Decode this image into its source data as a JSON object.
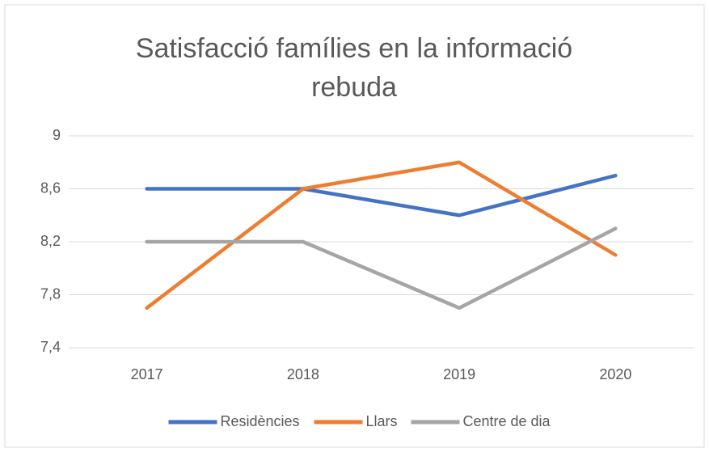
{
  "chart_data": {
    "type": "line",
    "title": "Satisfacció famílies en la informació rebuda",
    "categories": [
      "2017",
      "2018",
      "2019",
      "2020"
    ],
    "series": [
      {
        "name": "Residències",
        "color": "#4472c4",
        "values": [
          8.6,
          8.6,
          8.4,
          8.7
        ]
      },
      {
        "name": "Llars",
        "color": "#ed7d31",
        "values": [
          7.7,
          8.6,
          8.8,
          8.1
        ]
      },
      {
        "name": "Centre de dia",
        "color": "#a5a5a5",
        "values": [
          8.2,
          8.2,
          7.7,
          8.3
        ]
      }
    ],
    "ylim": [
      7.4,
      9
    ],
    "yticks": [
      {
        "value": 7.4,
        "label": "7,4"
      },
      {
        "value": 7.8,
        "label": "7,8"
      },
      {
        "value": 8.2,
        "label": "8,2"
      },
      {
        "value": 8.6,
        "label": "8,6"
      },
      9
    ],
    "grid": true,
    "legend": "bottom"
  }
}
